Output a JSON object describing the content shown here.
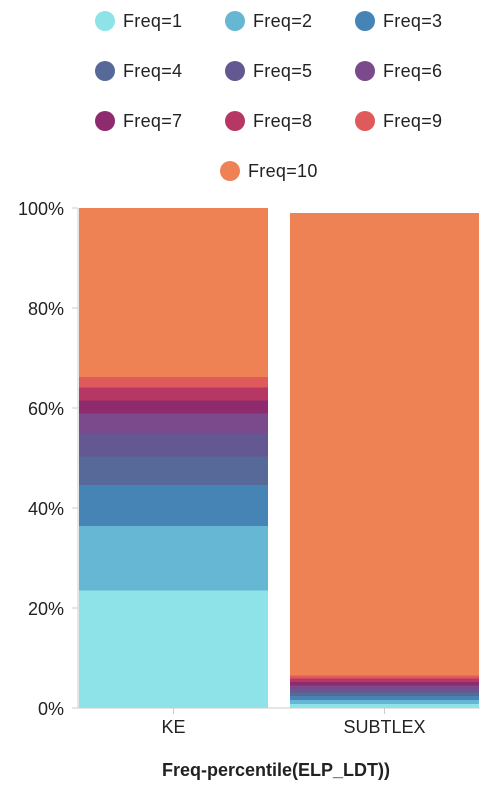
{
  "chart_data": {
    "type": "bar",
    "stacked": true,
    "normalized": true,
    "categories": [
      "KE",
      "SUBTLEX"
    ],
    "series": [
      {
        "name": "Freq=1",
        "color": "#8ee3e8",
        "values": [
          23.5,
          0.8
        ]
      },
      {
        "name": "Freq=2",
        "color": "#66b7d3",
        "values": [
          12.9,
          0.8
        ]
      },
      {
        "name": "Freq=3",
        "color": "#4584b5",
        "values": [
          8.2,
          0.8
        ]
      },
      {
        "name": "Freq=4",
        "color": "#576998",
        "values": [
          5.7,
          0.7
        ]
      },
      {
        "name": "Freq=5",
        "color": "#645892",
        "values": [
          4.6,
          0.7
        ]
      },
      {
        "name": "Freq=6",
        "color": "#7a4a8d",
        "values": [
          4.0,
          0.7
        ]
      },
      {
        "name": "Freq=7",
        "color": "#8e2a6e",
        "values": [
          2.6,
          0.7
        ]
      },
      {
        "name": "Freq=8",
        "color": "#b73764",
        "values": [
          2.6,
          0.7
        ]
      },
      {
        "name": "Freq=9",
        "color": "#df5b5b",
        "values": [
          2.1,
          0.6
        ]
      },
      {
        "name": "Freq=10",
        "color": "#ef8254",
        "values": [
          33.8,
          92.5
        ]
      }
    ],
    "yticks": [
      "0%",
      "20%",
      "40%",
      "60%",
      "80%",
      "100%"
    ],
    "ylim": [
      0,
      100
    ],
    "xlabel": "Freq-percentile(ELP_LDT))",
    "ylabel": "",
    "legend_position": "top",
    "grid": false
  }
}
